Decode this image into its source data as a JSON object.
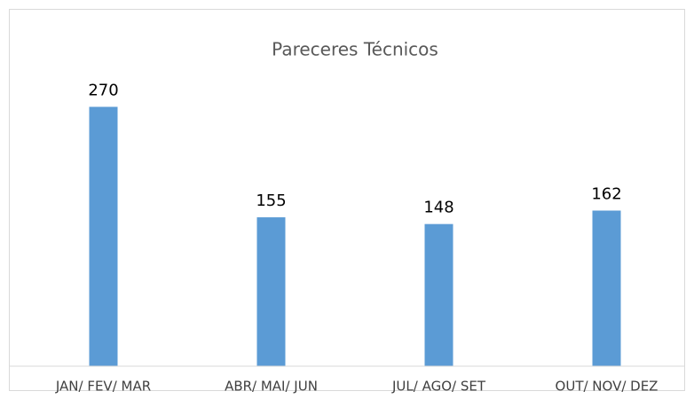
{
  "chart_data": {
    "type": "bar",
    "title": "Pareceres Técnicos",
    "categories": [
      "JAN/ FEV/ MAR",
      "ABR/ MAI/ JUN",
      "JUL/ AGO/ SET",
      "OUT/ NOV/ DEZ"
    ],
    "values": [
      270,
      155,
      148,
      162
    ],
    "color": "#5b9bd5",
    "ylim": [
      0,
      300
    ],
    "grid": false
  }
}
